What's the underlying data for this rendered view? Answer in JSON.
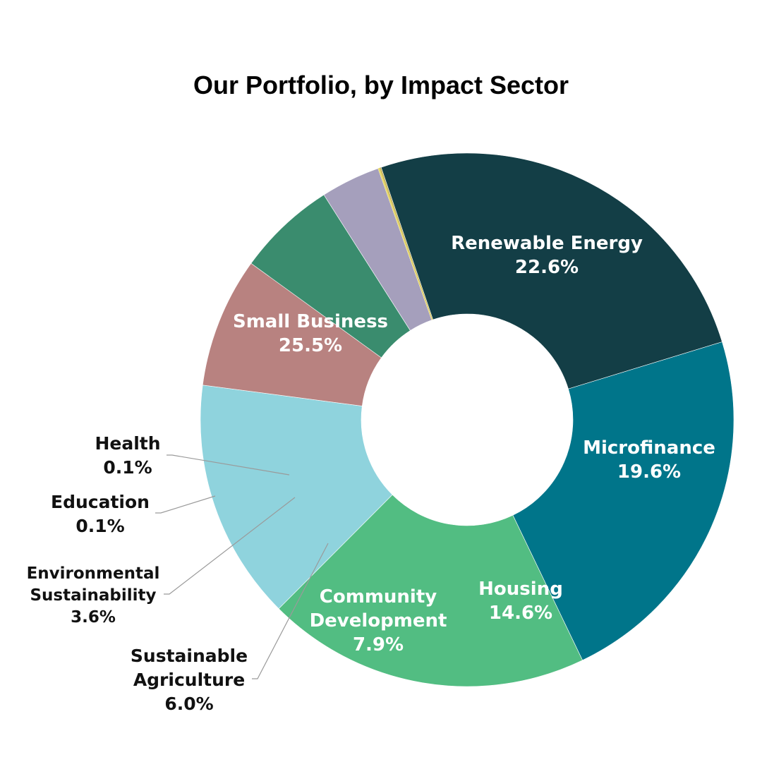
{
  "chart_data": {
    "type": "pie",
    "title": "Our Portfolio, by Impact Sector",
    "slices": [
      {
        "label_lines": [
          "Renewable Energy"
        ],
        "value_label": "22.6%",
        "value": 22.6,
        "color": "#00758a",
        "label_style": "inside"
      },
      {
        "label_lines": [
          "Microfinance"
        ],
        "value_label": "19.6%",
        "value": 19.6,
        "color": "#52bd82",
        "label_style": "inside"
      },
      {
        "label_lines": [
          "Housing"
        ],
        "value_label": "14.6%",
        "value": 14.6,
        "color": "#8fd3dd",
        "label_style": "inside"
      },
      {
        "label_lines": [
          "Community",
          "Development"
        ],
        "value_label": "7.9%",
        "value": 7.9,
        "color": "#b88280",
        "label_style": "inside"
      },
      {
        "label_lines": [
          "Sustainable",
          "Agriculture"
        ],
        "value_label": "6.0%",
        "value": 6.0,
        "color": "#3a8c6e",
        "label_style": "outside"
      },
      {
        "label_lines": [
          "Environmental",
          "Sustainability"
        ],
        "value_label": "3.6%",
        "value": 3.6,
        "color": "#a59fbc",
        "label_style": "outside"
      },
      {
        "label_lines": [
          "Education"
        ],
        "value_label": "0.1%",
        "value": 0.1,
        "color": "#e8d96a",
        "label_style": "outside"
      },
      {
        "label_lines": [
          "Health"
        ],
        "value_label": "0.1%",
        "value": 0.1,
        "color": "#c7b45a",
        "label_style": "outside"
      },
      {
        "label_lines": [
          "Small Business"
        ],
        "value_label": "25.5%",
        "value": 25.5,
        "color": "#133e46",
        "label_style": "inside"
      }
    ],
    "start_angle_deg": -17,
    "donut": true,
    "legend": "none"
  }
}
